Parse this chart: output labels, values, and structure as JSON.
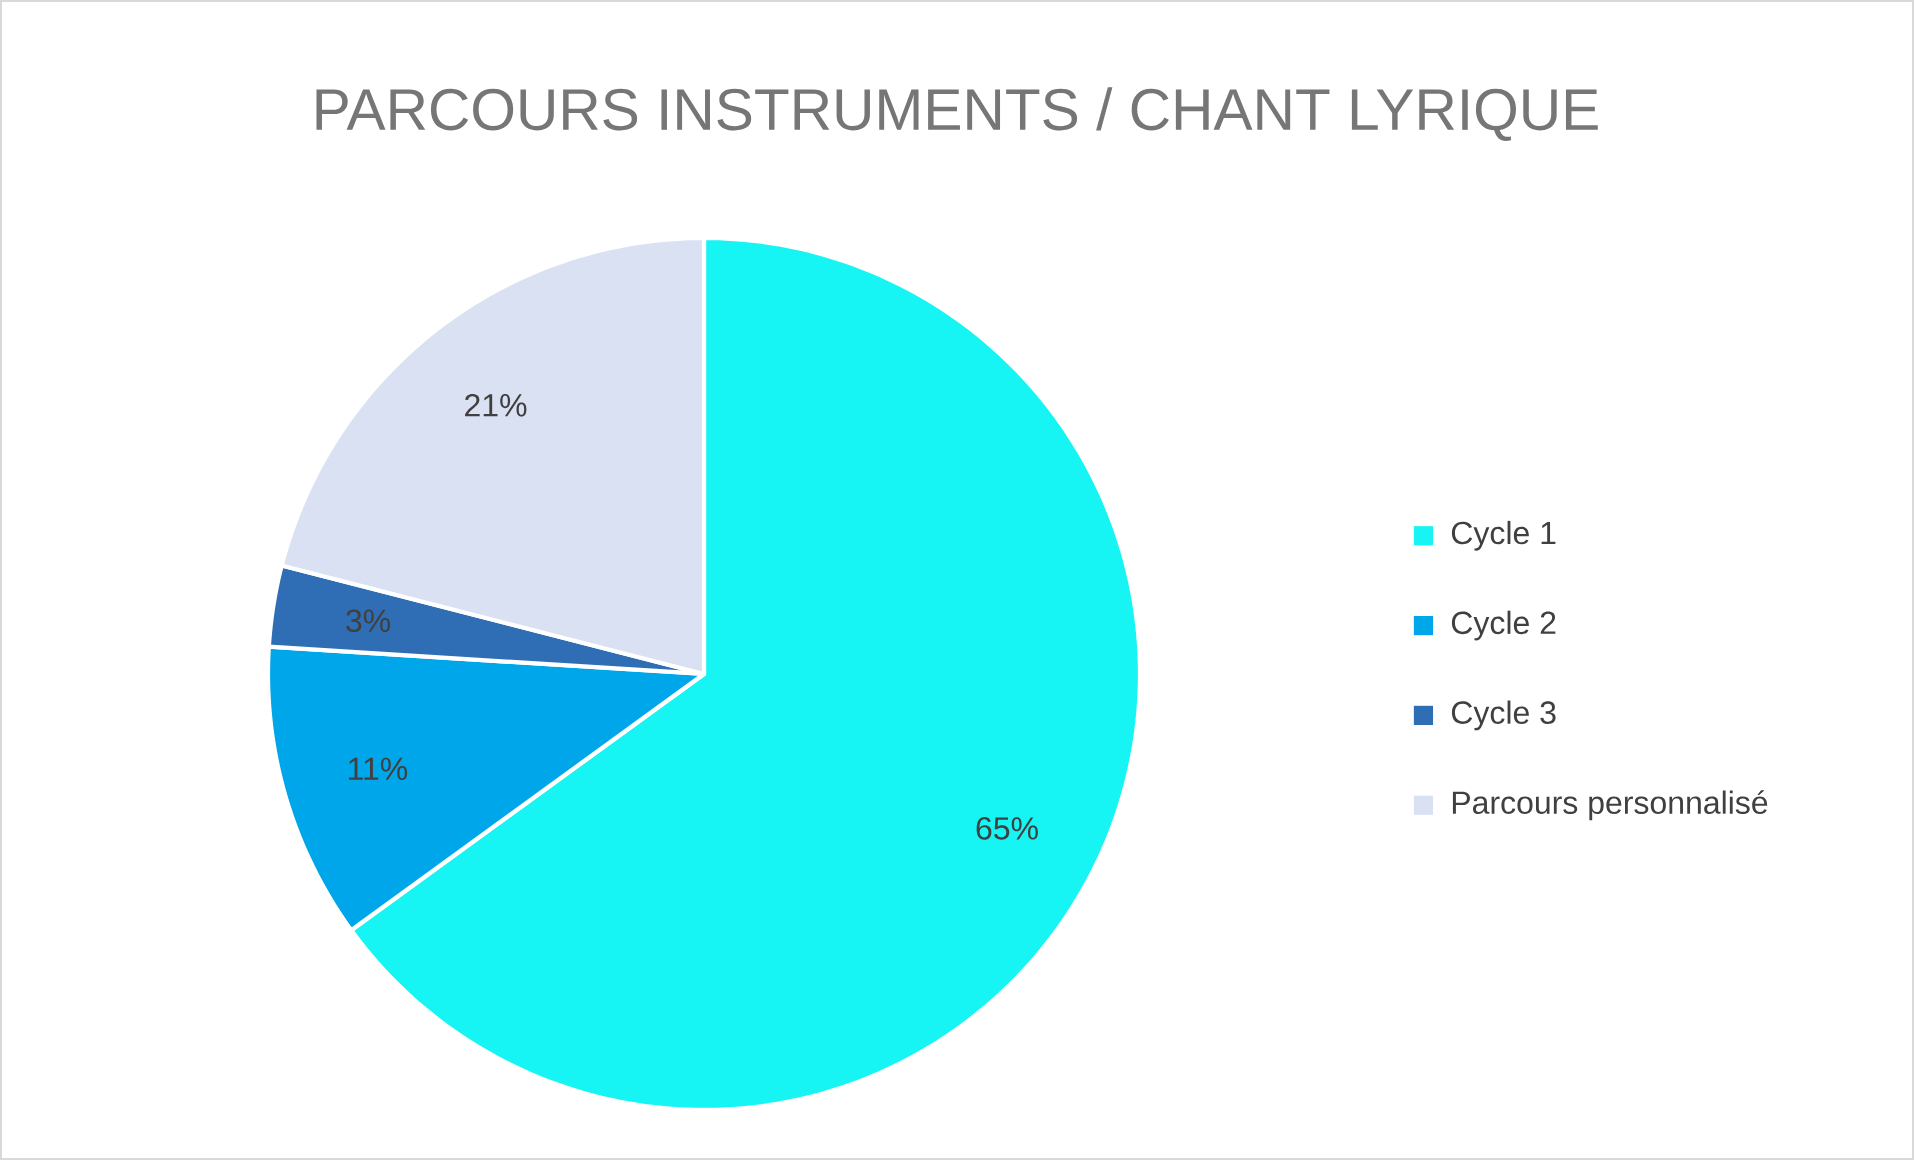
{
  "chart_data": {
    "type": "pie",
    "title": "PARCOURS INSTRUMENTS / CHANT LYRIQUE",
    "categories": [
      "Cycle 1",
      "Cycle 2",
      "Cycle 3",
      "Parcours personnalisé"
    ],
    "values": [
      65,
      11,
      3,
      21
    ],
    "value_labels": [
      "65%",
      "11%",
      "3%",
      "21%"
    ],
    "colors": [
      "#17f4f4",
      "#00a6ea",
      "#2f6eb5",
      "#d9e1f2"
    ],
    "legend": "right"
  }
}
